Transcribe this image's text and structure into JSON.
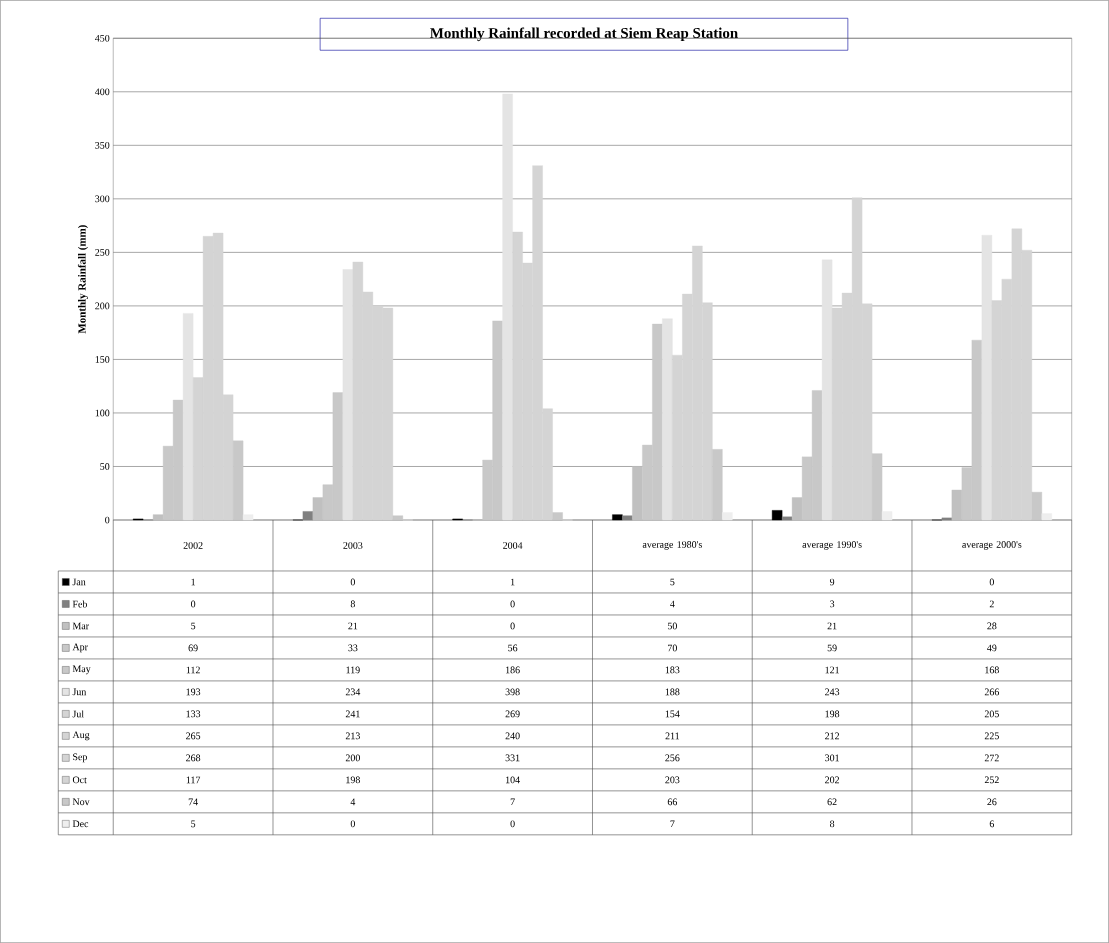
{
  "chart_data": {
    "type": "bar",
    "title": "Monthly Rainfall recorded at Siem Reap Station",
    "ylabel": "Monthly Rainfall (mm)",
    "categories": [
      "2002",
      "2003",
      "2004",
      "average 1980's",
      "average 1990's",
      "average 2000's"
    ],
    "ylim": [
      0,
      450
    ],
    "yticks": [
      0,
      50,
      100,
      150,
      200,
      250,
      300,
      350,
      400,
      450
    ],
    "grid": "y",
    "legend": "bottom left",
    "data_labels": true,
    "series": [
      {
        "name": "Jan",
        "color": "#000000",
        "values": [
          1,
          0,
          1,
          5,
          9,
          0
        ]
      },
      {
        "name": "Feb",
        "color": "#808080",
        "values": [
          0,
          8,
          0,
          4,
          3,
          2
        ]
      },
      {
        "name": "Mar",
        "color": "#c0c0c0",
        "values": [
          5,
          21,
          0,
          50,
          21,
          28
        ]
      },
      {
        "name": "Apr",
        "color": "#c8c8c8",
        "values": [
          69,
          33,
          56,
          70,
          59,
          49
        ]
      },
      {
        "name": "May",
        "color": "#c8c8c8",
        "values": [
          112,
          119,
          186,
          183,
          121,
          168
        ]
      },
      {
        "name": "Jun",
        "color": "#e4e4e4",
        "values": [
          193,
          234,
          398,
          188,
          243,
          266
        ]
      },
      {
        "name": "Jul",
        "color": "#d4d4d4",
        "values": [
          133,
          241,
          269,
          154,
          198,
          205
        ]
      },
      {
        "name": "Aug",
        "color": "#d4d4d4",
        "values": [
          265,
          213,
          240,
          211,
          212,
          225
        ]
      },
      {
        "name": "Sep",
        "color": "#d4d4d4",
        "values": [
          268,
          200,
          331,
          256,
          301,
          272
        ]
      },
      {
        "name": "Oct",
        "color": "#d4d4d4",
        "values": [
          117,
          198,
          104,
          203,
          202,
          252
        ]
      },
      {
        "name": "Nov",
        "color": "#c8c8c8",
        "values": [
          74,
          4,
          7,
          66,
          62,
          26
        ]
      },
      {
        "name": "Dec",
        "color": "#eeeeee",
        "values": [
          5,
          0,
          0,
          7,
          8,
          6
        ]
      }
    ]
  }
}
